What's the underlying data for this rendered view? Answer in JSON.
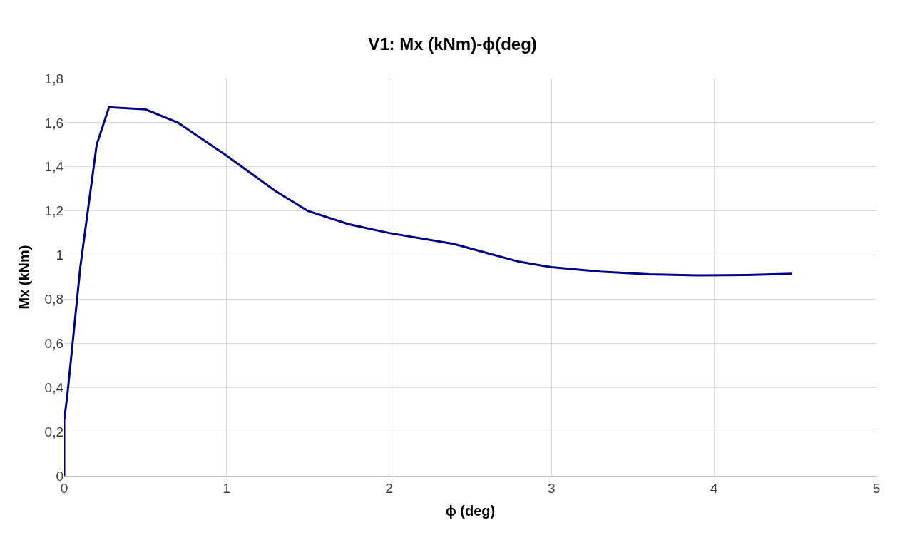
{
  "chart_data": {
    "type": "line",
    "title": "V1: Mx (kNm)-ϕ(deg)",
    "xlabel": "ϕ (deg)",
    "ylabel": "Mx (kNm)",
    "series": [
      {
        "color": "#00008b",
        "x": [
          0,
          0,
          0.02,
          0.1,
          0.2,
          0.276,
          0.5,
          0.7,
          1.0,
          1.3,
          1.5,
          1.75,
          2.0,
          2.4,
          2.6,
          2.8,
          3.0,
          3.3,
          3.6,
          3.9,
          4.2,
          4.48
        ],
        "values": [
          0,
          0.25,
          0.37,
          0.95,
          1.5,
          1.67,
          1.66,
          1.6,
          1.45,
          1.29,
          1.2,
          1.14,
          1.1,
          1.05,
          1.01,
          0.97,
          0.945,
          0.925,
          0.913,
          0.908,
          0.91,
          0.915
        ]
      }
    ],
    "xlim": [
      0,
      5
    ],
    "xticks": [
      0,
      1,
      2,
      3,
      4,
      5
    ],
    "ylim": [
      0,
      1.8
    ],
    "yticks": [
      0,
      {
        "value": 0.2,
        "label": "0,2"
      },
      {
        "value": 0.4,
        "label": "0,4"
      },
      {
        "value": 0.6,
        "label": "0,6"
      },
      {
        "value": 0.8,
        "label": "0,8"
      },
      1,
      {
        "value": 1.2,
        "label": "1,2"
      },
      {
        "value": 1.4,
        "label": "1,4"
      },
      {
        "value": 1.6,
        "label": "1,6"
      },
      {
        "value": 1.8,
        "label": "1,8"
      }
    ],
    "grid": true,
    "marker": "none",
    "line_style": "solid"
  }
}
